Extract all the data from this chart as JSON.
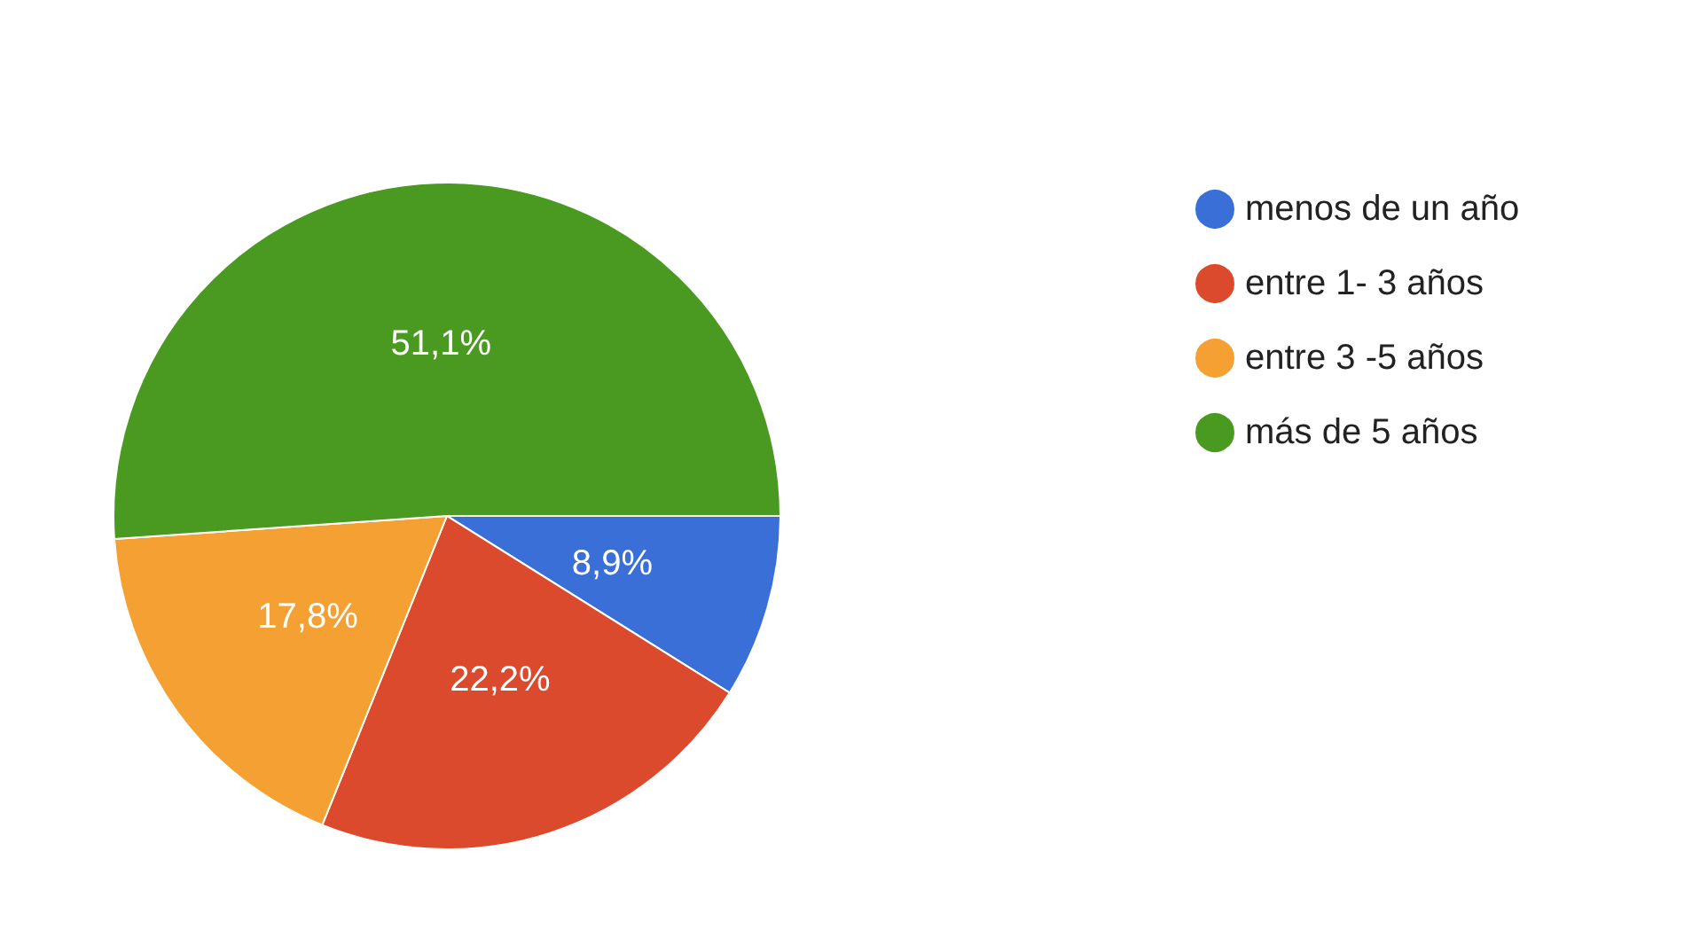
{
  "chart_data": {
    "type": "pie",
    "categories": [
      "menos de un año",
      "entre 1- 3 años",
      "entre 3 -5 años",
      "más de 5 años"
    ],
    "values": [
      8.9,
      22.2,
      17.8,
      51.1
    ],
    "colors": [
      "#3a6fd8",
      "#dc4a2e",
      "#f4a033",
      "#4a9a22"
    ],
    "value_labels": [
      "8,9%",
      "22,2%",
      "17,8%",
      "51,1%"
    ],
    "legend": "top right"
  }
}
